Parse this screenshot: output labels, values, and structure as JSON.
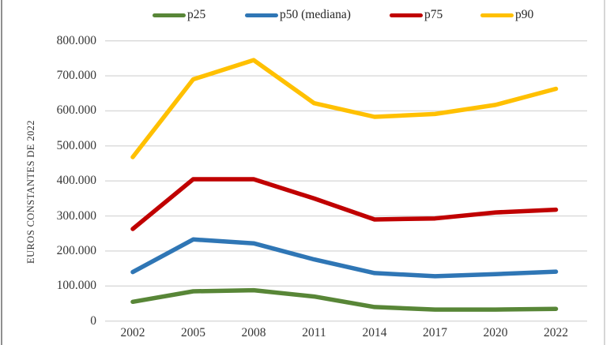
{
  "chart_data": {
    "type": "line",
    "title": "",
    "xlabel": "",
    "ylabel": "EUROS CONSTANTES DE 2022",
    "categories": [
      "2002",
      "2005",
      "2008",
      "2011",
      "2014",
      "2017",
      "2020",
      "2022"
    ],
    "y_ticks": [
      "800.000",
      "700.000",
      "600.000",
      "500.000",
      "400.000",
      "300.000",
      "200.000",
      "100.000",
      "0"
    ],
    "ylim": [
      0,
      800000
    ],
    "grid": true,
    "legend_position": "top",
    "series": [
      {
        "name": "p25",
        "color": "#588637",
        "values": [
          55000,
          85000,
          88000,
          70000,
          40000,
          33000,
          33000,
          35000
        ]
      },
      {
        "name": "p50 (mediana)",
        "color": "#2f76b5",
        "values": [
          140000,
          233000,
          222000,
          176000,
          137000,
          128000,
          134000,
          141000
        ]
      },
      {
        "name": "p75",
        "color": "#c00000",
        "values": [
          263000,
          405000,
          405000,
          350000,
          290000,
          293000,
          310000,
          318000
        ]
      },
      {
        "name": "p90",
        "color": "#ffc000",
        "values": [
          468000,
          690000,
          745000,
          622000,
          583000,
          591000,
          617000,
          663000
        ]
      }
    ],
    "gridline_color": "#d9d9d9"
  }
}
